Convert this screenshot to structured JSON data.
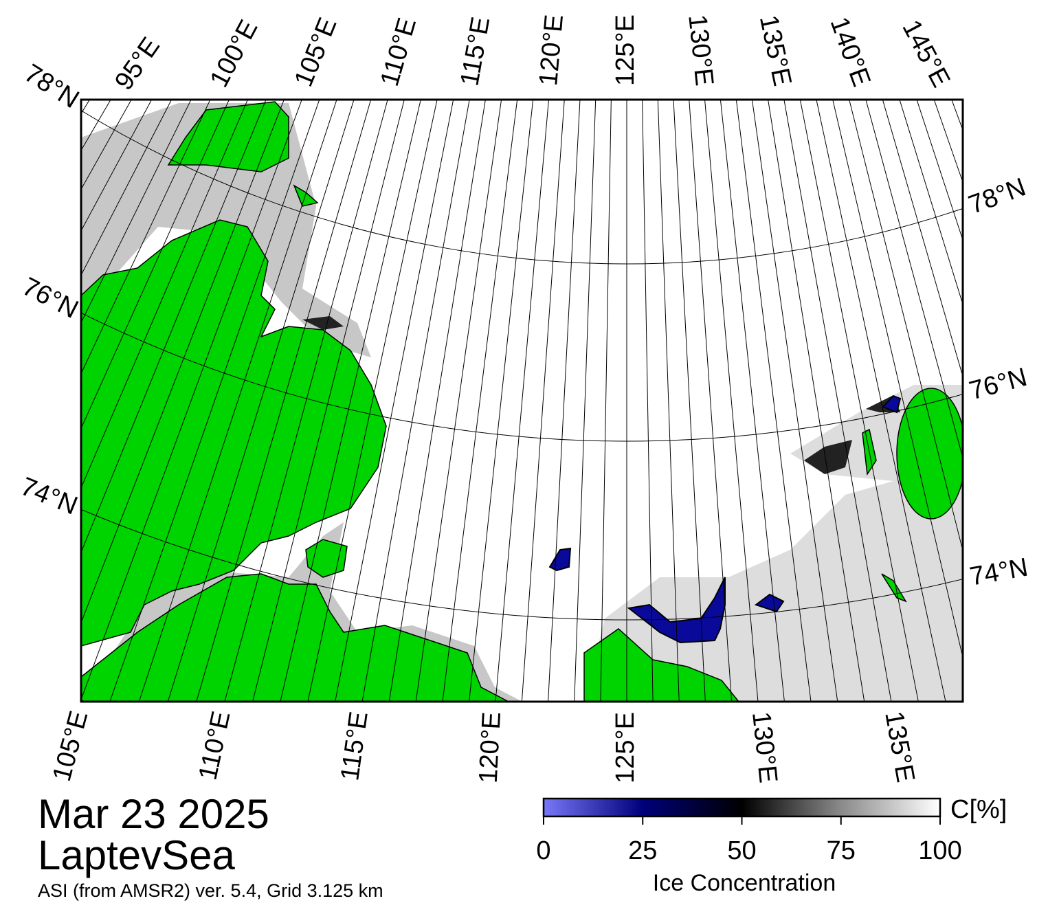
{
  "map": {
    "top_labels": [
      "95°E",
      "100°E",
      "105°E",
      "110°E",
      "115°E",
      "120°E",
      "125°E",
      "130°E",
      "135°E",
      "140°E",
      "145°E"
    ],
    "bottom_labels": [
      "105°E",
      "110°E",
      "115°E",
      "120°E",
      "125°E",
      "130°E",
      "135°E"
    ],
    "left_labels": [
      "78°N",
      "76°N",
      "74°N"
    ],
    "right_labels": [
      "78°N",
      "76°N",
      "74°N"
    ]
  },
  "date": "Mar 23 2025",
  "region": "LaptevSea",
  "source": "ASI (from AMSR2) ver. 5.4,  Grid 3.125 km",
  "colorbar": {
    "label": "Ice Concentration",
    "unit": "C[%]",
    "range": [
      0,
      100
    ],
    "ticks": [
      0,
      25,
      50,
      75,
      100
    ]
  }
}
